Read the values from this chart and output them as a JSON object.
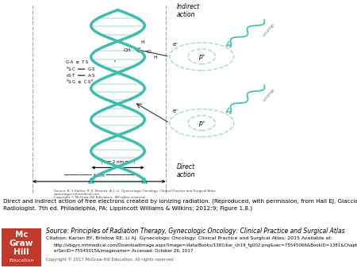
{
  "bg_color": "#ffffff",
  "fig_width": 4.5,
  "fig_height": 3.38,
  "dpi": 100,
  "caption_text": "Direct and indirect action of free electrons created by ionizing radiation. (Reproduced, with permission, from Hall EJ, Giaccia AJ. Radiobiology for the Radiologist. 7th ed. Philadelphia, PA: Lippincott Williams & Wilkins; 2012:9; Figure 1.8.)",
  "source_line1": "Source: Principles of Radiation Therapy, Gynecologic Oncology: Clinical Practice and Surgical Atlas",
  "source_line2": "Citation: Karlan BY, Bristow RE, Li AJ. Gynecologic Oncology: Clinical Practice and Surgical Atlas; 2015 Available at:",
  "source_line3": "http://obgyn.mhmedical.com/DownloadImage.aspx?image=/data/Books/1381/kar_ch19_fg002.png&sec=75545066&BookID=1381&Chapt",
  "source_line4": "erSecID=75545015&imagename= Accessed: October 26, 2017",
  "source_line5": "Copyright © 2017 McGraw-Hill Education. All rights reserved",
  "image_source_text": "Source: B. Y. Karlan, R. E. Bristow, A. J. Li: Gynecologic Oncology: Clinical Practice and Surgical Atlas",
  "image_source2": "www.obgyn.mhmedical.com",
  "image_source3": "Copyright © McGraw-Hill Education.  All rights reserved.",
  "mcgraw_red": "#c0392b",
  "dna_teal": "#3dbdb0",
  "atom_teal": "#a8d8d5",
  "rung_color": "#c8e8e5",
  "arrow_color": "#333333",
  "photon_label_color": "#888888",
  "separator_color": "#aaaaaa"
}
